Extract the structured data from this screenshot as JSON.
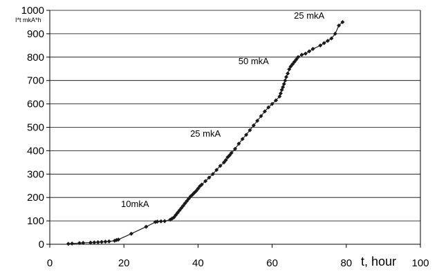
{
  "chart_data": {
    "type": "line",
    "xlabel": "t, hour",
    "ylabel": "I*t mkA*h",
    "xlim": [
      0,
      100
    ],
    "ylim": [
      0,
      1000
    ],
    "x_ticks": [
      "0",
      "20",
      "40",
      "60",
      "80",
      "100"
    ],
    "y_ticks": [
      "0",
      "100",
      "200",
      "300",
      "400",
      "500",
      "600",
      "700",
      "800",
      "900",
      "1000"
    ],
    "grid": "horizontal",
    "legend": "none",
    "annotations": [
      {
        "text": "10mkA",
        "x": 23,
        "y": 160
      },
      {
        "text": "25 mkA",
        "x": 42,
        "y": 460
      },
      {
        "text": "50 mkA",
        "x": 55,
        "y": 770
      },
      {
        "text": "25 mkA",
        "x": 70,
        "y": 965
      }
    ],
    "series": [
      {
        "color": "#1a1a1a",
        "x": [
          5,
          6,
          8,
          9,
          11,
          12,
          13,
          14,
          15,
          16,
          17.5,
          18,
          18.5,
          22,
          26,
          28.5,
          29,
          30,
          31,
          32.5,
          33,
          33.5,
          34,
          34.5,
          35,
          35.5,
          36,
          36.5,
          37,
          37.5,
          38,
          38.5,
          39,
          39.5,
          40,
          40.5,
          41,
          42,
          43,
          44,
          45,
          46,
          47,
          47.5,
          48,
          48.5,
          49,
          50,
          51,
          52,
          53,
          54,
          55,
          56,
          57,
          58,
          59,
          60,
          61,
          62,
          62.3,
          62.6,
          62.9,
          63.2,
          63.5,
          63.8,
          64.2,
          64.6,
          65,
          65.5,
          66,
          66.5,
          67,
          68,
          69,
          70,
          71,
          73,
          74,
          75,
          76,
          77,
          78,
          79
        ],
        "y": [
          2,
          3,
          5,
          6,
          7,
          8,
          9,
          10,
          11,
          12,
          15,
          18,
          20,
          45,
          75,
          95,
          97,
          98,
          99,
          105,
          110,
          115,
          125,
          135,
          145,
          155,
          165,
          175,
          185,
          195,
          205,
          212,
          220,
          228,
          238,
          248,
          255,
          270,
          285,
          300,
          318,
          335,
          350,
          360,
          372,
          380,
          390,
          408,
          430,
          450,
          468,
          488,
          508,
          528,
          548,
          568,
          585,
          600,
          615,
          632,
          645,
          660,
          672,
          685,
          700,
          715,
          730,
          748,
          760,
          770,
          780,
          790,
          800,
          810,
          815,
          825,
          835,
          850,
          860,
          870,
          880,
          900,
          935,
          950
        ]
      }
    ]
  }
}
